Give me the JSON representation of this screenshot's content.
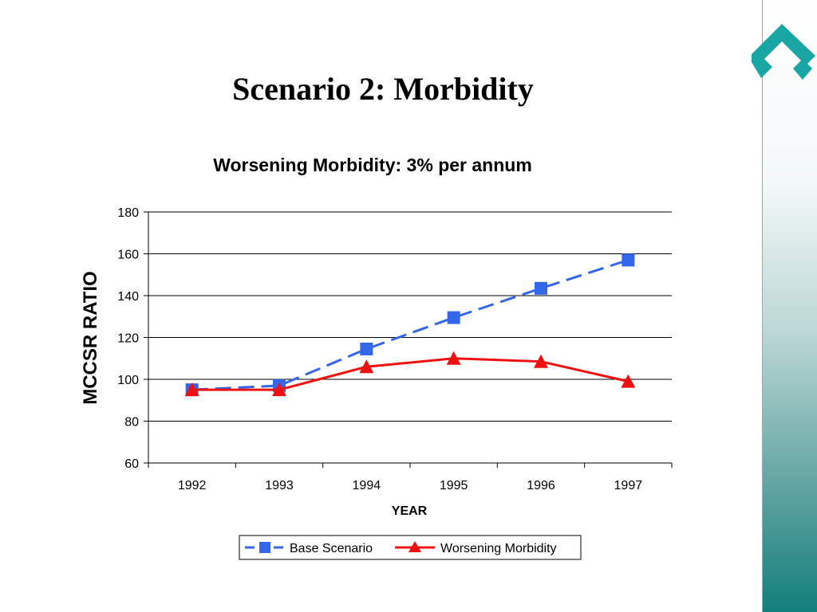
{
  "slide": {
    "title": "Scenario 2: Morbidity"
  },
  "colors": {
    "base": "#3366e8",
    "worsening": "#ee1111",
    "band_dark": "#127f7b",
    "logo": "#1aa5a5"
  },
  "icons": {
    "logo": "teal-chevron-logo-icon"
  },
  "chart_data": {
    "type": "line",
    "title": "Worsening Morbidity: 3% per annum",
    "xlabel": "YEAR",
    "ylabel": "MCCSR RATIO",
    "categories": [
      "1992",
      "1993",
      "1994",
      "1995",
      "1996",
      "1997"
    ],
    "ylim": [
      60,
      180
    ],
    "yticks": [
      60,
      80,
      100,
      120,
      140,
      160,
      180
    ],
    "grid": true,
    "legend_position": "bottom",
    "series": [
      {
        "name": "Base Scenario",
        "values": [
          95,
          97,
          114.5,
          129.5,
          143.5,
          157
        ],
        "marker": "square",
        "style": "dashed"
      },
      {
        "name": "Worsening Morbidity",
        "values": [
          95,
          95,
          106,
          110,
          108.5,
          99
        ],
        "marker": "triangle",
        "style": "solid"
      }
    ]
  }
}
